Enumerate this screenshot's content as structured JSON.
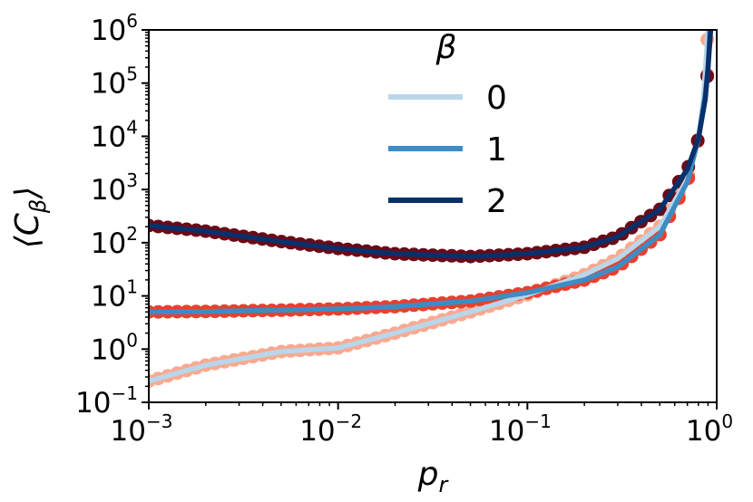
{
  "chart_data": {
    "type": "line",
    "title": "",
    "xlabel": "p_r",
    "ylabel": "⟨C_β⟩",
    "xscale": "log",
    "yscale": "log",
    "xlim": [
      0.001,
      1.0
    ],
    "ylim": [
      0.1,
      1000000
    ],
    "x_ticks": [
      {
        "base": "10",
        "exp": "−3",
        "value": 0.001
      },
      {
        "base": "10",
        "exp": "−2",
        "value": 0.01
      },
      {
        "base": "10",
        "exp": "−1",
        "value": 0.1
      },
      {
        "base": "10",
        "exp": "0",
        "value": 1
      }
    ],
    "y_ticks": [
      {
        "base": "10",
        "exp": "−1",
        "value": 0.1
      },
      {
        "base": "10",
        "exp": "0",
        "value": 1
      },
      {
        "base": "10",
        "exp": "1",
        "value": 10
      },
      {
        "base": "10",
        "exp": "2",
        "value": 100
      },
      {
        "base": "10",
        "exp": "3",
        "value": 1000
      },
      {
        "base": "10",
        "exp": "4",
        "value": 10000
      },
      {
        "base": "10",
        "exp": "5",
        "value": 100000
      },
      {
        "base": "10",
        "exp": "6",
        "value": 1000000
      }
    ],
    "grid": false,
    "legend": {
      "title": "β",
      "placement": "top-center",
      "entries": [
        {
          "label": "0",
          "color": "#b9d6ea"
        },
        {
          "label": "1",
          "color": "#3d8cc4"
        },
        {
          "label": "2",
          "color": "#08306b"
        }
      ]
    },
    "series": [
      {
        "name": "0",
        "line_color": "#b9d6ea",
        "marker_color": "#f9a98f",
        "points": [
          [
            0.001,
            0.25
          ],
          [
            0.002,
            0.5
          ],
          [
            0.005,
            0.9
          ],
          [
            0.01,
            1.05
          ],
          [
            0.02,
            2.0
          ],
          [
            0.05,
            5.0
          ],
          [
            0.1,
            10.5
          ],
          [
            0.2,
            25
          ],
          [
            0.3,
            50
          ],
          [
            0.5,
            200
          ],
          [
            0.7,
            1600
          ],
          [
            0.8,
            9000
          ],
          [
            0.85,
            50000
          ],
          [
            0.88,
            300000
          ],
          [
            0.9,
            1200000
          ]
        ]
      },
      {
        "name": "1",
        "line_color": "#3d8cc4",
        "marker_color": "#e8402e",
        "points": [
          [
            0.001,
            5.0
          ],
          [
            0.002,
            5.1
          ],
          [
            0.005,
            5.4
          ],
          [
            0.01,
            5.7
          ],
          [
            0.02,
            6.3
          ],
          [
            0.05,
            8.0
          ],
          [
            0.1,
            11.5
          ],
          [
            0.2,
            20
          ],
          [
            0.3,
            35
          ],
          [
            0.5,
            140
          ],
          [
            0.7,
            1400
          ],
          [
            0.8,
            9000
          ],
          [
            0.87,
            60000
          ],
          [
            0.9,
            200000
          ],
          [
            0.92,
            1000000
          ]
        ]
      },
      {
        "name": "2",
        "line_color": "#08306b",
        "marker_color": "#6b0a17",
        "points": [
          [
            0.001,
            210
          ],
          [
            0.002,
            165
          ],
          [
            0.005,
            105
          ],
          [
            0.01,
            78
          ],
          [
            0.02,
            62
          ],
          [
            0.05,
            55
          ],
          [
            0.1,
            62
          ],
          [
            0.2,
            82
          ],
          [
            0.3,
            130
          ],
          [
            0.5,
            420
          ],
          [
            0.7,
            2400
          ],
          [
            0.8,
            9000
          ],
          [
            0.87,
            50000
          ],
          [
            0.9,
            200000
          ],
          [
            0.93,
            1000000
          ]
        ]
      }
    ]
  }
}
